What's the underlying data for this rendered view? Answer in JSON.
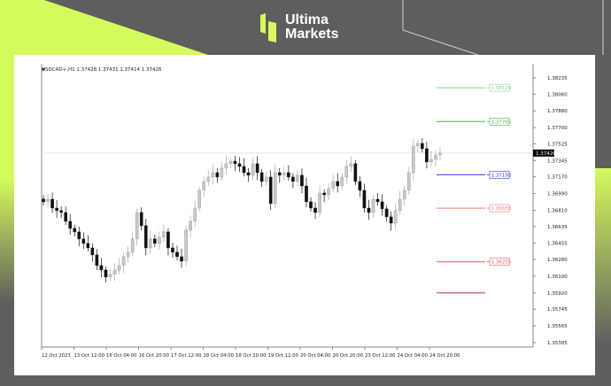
{
  "brand": {
    "line1": "Ultima",
    "line2": "Markets",
    "accent_color": "#d4fa5c",
    "background_color": "#5e5e5e"
  },
  "chart_data": {
    "type": "candlestick",
    "title": "USDCAD+,H1  1.37428 1.37431 1.37414 1.37426",
    "symbol": "USDCAD+,H1",
    "ohlc_last": {
      "open": 1.37428,
      "high": 1.37431,
      "low": 1.37414,
      "close": 1.37426
    },
    "current_price": "1.37426",
    "ylim": [
      1.353,
      1.3832
    ],
    "y_ticks": [
      "1.38235",
      "1.38060",
      "1.37880",
      "1.37700",
      "1.37525",
      "1.37345",
      "1.37170",
      "1.36990",
      "1.36810",
      "1.36635",
      "1.36455",
      "1.36280",
      "1.36100",
      "1.35920",
      "1.35745",
      "1.35565",
      "1.35385"
    ],
    "x_ticks": [
      "12 Oct 2023",
      "13 Oct 12:00",
      "16 Oct 04:00",
      "16 Oct 20:00",
      "17 Oct 12:00",
      "18 Oct 04:00",
      "18 Oct 20:00",
      "19 Oct 12:00",
      "20 Oct 04:00",
      "20 Oct 20:00",
      "23 Oct 12:00",
      "24 Oct 04:00",
      "24 Oct 20:00"
    ],
    "closes": [
      1.36901,
      1.36929,
      1.36834,
      1.36806,
      1.36786,
      1.36691,
      1.36615,
      1.36577,
      1.36501,
      1.36453,
      1.36405,
      1.36329,
      1.36215,
      1.36167,
      1.36091,
      1.3612,
      1.36167,
      1.36215,
      1.3631,
      1.36358,
      1.36501,
      1.36786,
      1.36644,
      1.36405,
      1.36501,
      1.36453,
      1.3652,
      1.36577,
      1.36405,
      1.36358,
      1.3631,
      1.36262,
      1.36596,
      1.36691,
      1.36834,
      1.37025,
      1.3712,
      1.37168,
      1.37215,
      1.37168,
      1.37263,
      1.37311,
      1.37339,
      1.37311,
      1.37282,
      1.37215,
      1.37187,
      1.37311,
      1.37215,
      1.3712,
      1.37168,
      1.36882,
      1.37215,
      1.37187,
      1.37215,
      1.37168,
      1.3712,
      1.37187,
      1.37072,
      1.36901,
      1.36834,
      1.36786,
      1.36996,
      1.36977,
      1.37044,
      1.3712,
      1.37072,
      1.37168,
      1.37282,
      1.37311,
      1.3712,
      1.37025,
      1.36834,
      1.36786,
      1.36929,
      1.36901,
      1.36825,
      1.36739,
      1.36672,
      1.36806,
      1.36929,
      1.37025,
      1.37215,
      1.37501,
      1.3753,
      1.37473,
      1.3733,
      1.37358,
      1.37406,
      1.37426
    ],
    "levels": [
      {
        "value": 1.38129,
        "label": "1.38129",
        "color": "#8fd08f"
      },
      {
        "value": 1.37765,
        "label": "1.37765",
        "color": "#4caf50"
      },
      {
        "value": 1.37193,
        "label": "1.37193",
        "color": "#3a3ad8"
      },
      {
        "value": 1.36833,
        "label": "1.36833",
        "color": "#f07b7b"
      },
      {
        "value": 1.36255,
        "label": "1.36255",
        "color": "#e85a5a"
      },
      {
        "value": 1.3592,
        "label": "",
        "color": "#b03030"
      }
    ],
    "bull_color": "#c8c8c8",
    "bear_color": "#111111"
  }
}
